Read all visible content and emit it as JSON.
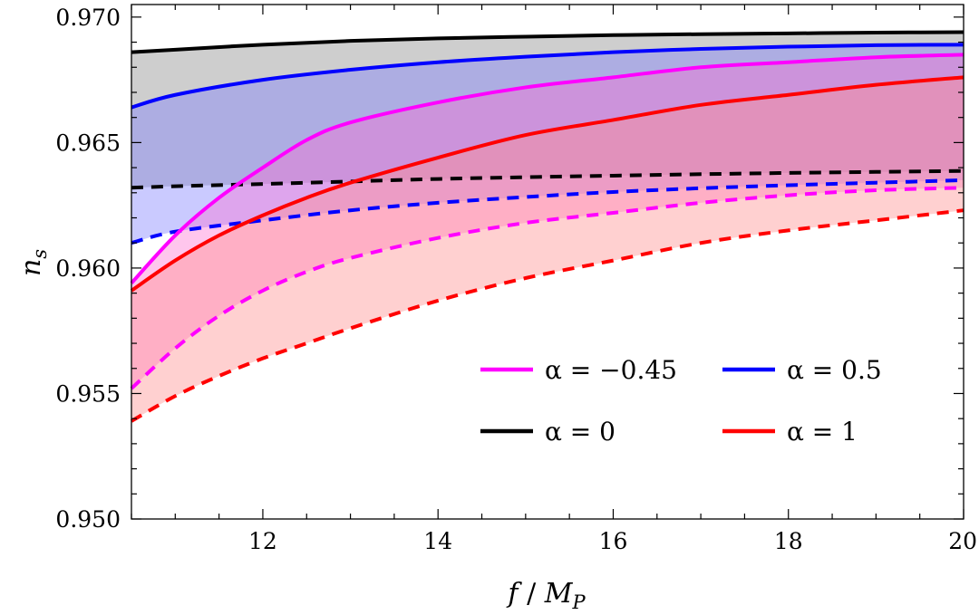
{
  "chart_data": {
    "type": "line",
    "xlabel": "f / M_P",
    "xlabel_parts": {
      "f": "f",
      "sep": " / ",
      "M": "M",
      "sub": "P"
    },
    "ylabel_parts": {
      "n": "n",
      "sub": "s"
    },
    "xlim": [
      10.5,
      20
    ],
    "ylim": [
      0.95,
      0.9705
    ],
    "x_ticks": [
      12,
      14,
      16,
      18,
      20
    ],
    "x_tick_labels": [
      "12",
      "14",
      "16",
      "18",
      "20"
    ],
    "y_ticks": [
      0.95,
      0.955,
      0.96,
      0.965,
      0.97
    ],
    "y_tick_labels": [
      "0.950",
      "0.955",
      "0.960",
      "0.965",
      "0.970"
    ],
    "x_minor_step": 0.5,
    "y_minor_step": 0.001,
    "legend_position": "bottom-right",
    "series": [
      {
        "name": "alpha = 0",
        "legend_label": "α = 0",
        "color": "#000000",
        "fill": "#a6a6a6",
        "fill_opacity": 0.55,
        "upper": {
          "x": [
            10.5,
            11,
            12,
            13,
            14,
            15,
            16,
            17,
            18,
            19,
            20
          ],
          "y": [
            0.9686,
            0.9687,
            0.9689,
            0.96905,
            0.96915,
            0.96922,
            0.96928,
            0.96932,
            0.96935,
            0.96938,
            0.9694
          ]
        },
        "lower": {
          "x": [
            10.5,
            11,
            12,
            13,
            14,
            15,
            16,
            17,
            18,
            19,
            20
          ],
          "y": [
            0.9632,
            0.96326,
            0.96335,
            0.96345,
            0.96355,
            0.96362,
            0.96368,
            0.96374,
            0.96379,
            0.96383,
            0.96387
          ]
        }
      },
      {
        "name": "alpha = 0.5",
        "legend_label": "α = 0.5",
        "color": "#0000ff",
        "fill": "#8080ff",
        "fill_opacity": 0.42,
        "upper": {
          "x": [
            10.5,
            11,
            12,
            13,
            14,
            15,
            16,
            17,
            18,
            19,
            20
          ],
          "y": [
            0.9664,
            0.9669,
            0.9675,
            0.9679,
            0.9682,
            0.96842,
            0.9686,
            0.96873,
            0.96882,
            0.96888,
            0.9689
          ]
        },
        "lower": {
          "x": [
            10.5,
            11,
            12,
            13,
            14,
            15,
            16,
            17,
            18,
            19,
            20
          ],
          "y": [
            0.961,
            0.96145,
            0.9619,
            0.9623,
            0.9626,
            0.96283,
            0.96303,
            0.96318,
            0.9633,
            0.9634,
            0.9635
          ]
        }
      },
      {
        "name": "alpha = -0.45",
        "legend_label": "α = −0.45",
        "color": "#ff00ff",
        "fill": "#ff6ad0",
        "fill_opacity": 0.38,
        "upper": {
          "x": [
            10.5,
            11,
            11.5,
            12,
            12.5,
            13,
            14,
            15,
            16,
            17,
            18,
            19,
            20
          ],
          "y": [
            0.9594,
            0.9613,
            0.9628,
            0.964,
            0.9651,
            0.9658,
            0.9666,
            0.9672,
            0.9676,
            0.968,
            0.9682,
            0.9684,
            0.9685
          ]
        },
        "lower": {
          "x": [
            10.5,
            11,
            11.5,
            12,
            12.5,
            13,
            14,
            15,
            16,
            17,
            18,
            19,
            20
          ],
          "y": [
            0.9552,
            0.9568,
            0.9581,
            0.9591,
            0.95985,
            0.9604,
            0.9612,
            0.9618,
            0.9622,
            0.9626,
            0.9629,
            0.9631,
            0.9632
          ]
        }
      },
      {
        "name": "alpha = 1",
        "legend_label": "α = 1",
        "color": "#ff0000",
        "fill": "#ff9090",
        "fill_opacity": 0.42,
        "upper": {
          "x": [
            10.5,
            11,
            11.5,
            12,
            12.5,
            13,
            14,
            15,
            16,
            17,
            18,
            19,
            20
          ],
          "y": [
            0.9591,
            0.9603,
            0.9613,
            0.9621,
            0.9628,
            0.9634,
            0.9644,
            0.9653,
            0.9659,
            0.9665,
            0.9669,
            0.9673,
            0.9676
          ]
        },
        "lower": {
          "x": [
            10.5,
            11,
            11.5,
            12,
            12.5,
            13,
            14,
            15,
            16,
            17,
            18,
            19,
            20
          ],
          "y": [
            0.9539,
            0.9549,
            0.9557,
            0.9564,
            0.957,
            0.9576,
            0.9587,
            0.9596,
            0.9603,
            0.961,
            0.9615,
            0.9619,
            0.9623
          ]
        }
      }
    ],
    "legend_order": [
      2,
      1,
      0,
      3
    ]
  }
}
